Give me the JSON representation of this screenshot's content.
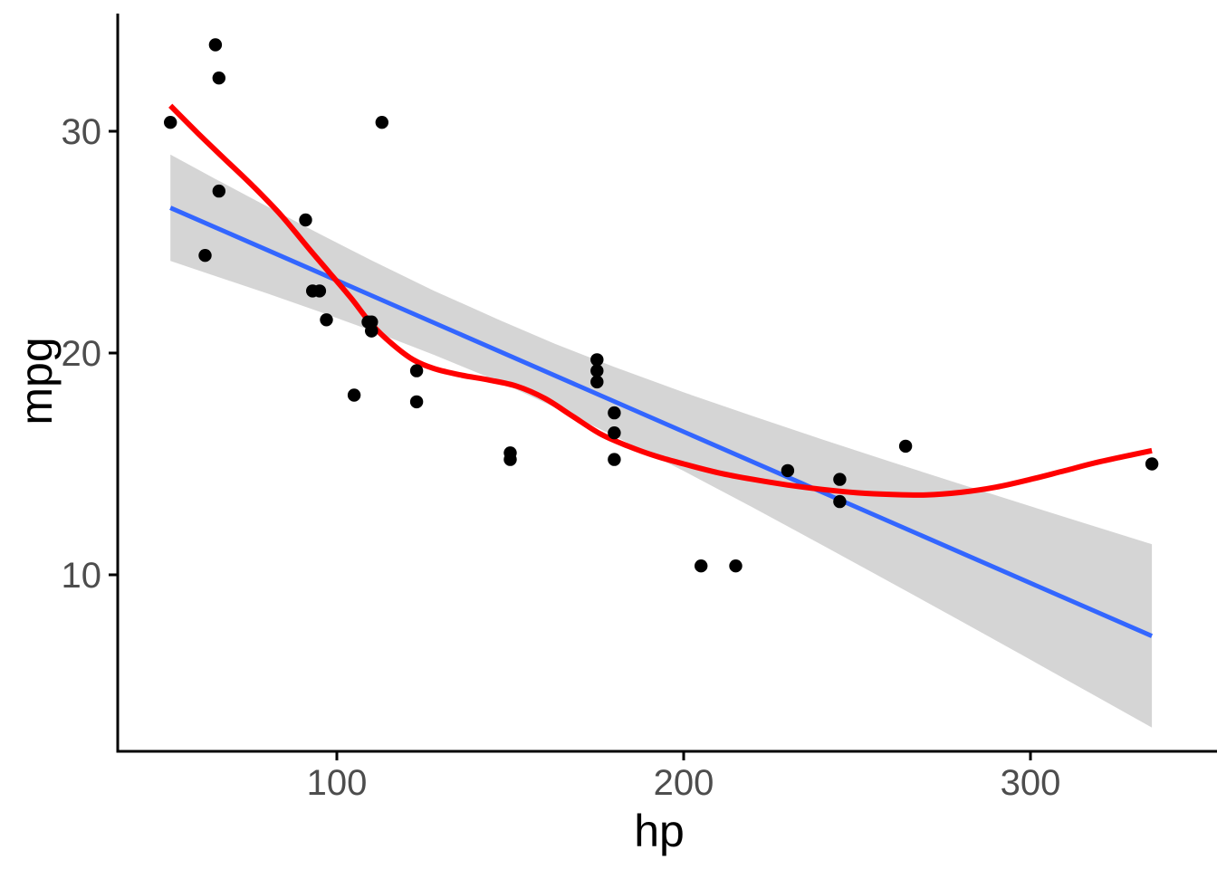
{
  "chart_data": {
    "type": "scatter",
    "title": "",
    "xlabel": "hp",
    "ylabel": "mpg",
    "x_ticks": [
      100,
      200,
      300
    ],
    "y_ticks": [
      10,
      20,
      30
    ],
    "xlim": [
      37,
      354
    ],
    "ylim": [
      2,
      35.3
    ],
    "grid": false,
    "legend": "none",
    "colors": {
      "point": "#000000",
      "linear_line": "#3366FF",
      "loess_line": "#FF0000",
      "ribbon": "#D5D5D5",
      "axis_line": "#000000",
      "tick_mark": "#000000",
      "tick_label": "#4D4D4D",
      "axis_title": "#000000",
      "background": "#FFFFFF"
    },
    "points": [
      [
        110,
        21.0
      ],
      [
        110,
        21.0
      ],
      [
        93,
        22.8
      ],
      [
        110,
        21.4
      ],
      [
        175,
        18.7
      ],
      [
        105,
        18.1
      ],
      [
        245,
        14.3
      ],
      [
        62,
        24.4
      ],
      [
        95,
        22.8
      ],
      [
        123,
        19.2
      ],
      [
        123,
        17.8
      ],
      [
        180,
        16.4
      ],
      [
        180,
        17.3
      ],
      [
        180,
        15.2
      ],
      [
        205,
        10.4
      ],
      [
        215,
        10.4
      ],
      [
        230,
        14.7
      ],
      [
        66,
        32.4
      ],
      [
        52,
        30.4
      ],
      [
        65,
        33.9
      ],
      [
        97,
        21.5
      ],
      [
        150,
        15.5
      ],
      [
        150,
        15.2
      ],
      [
        245,
        13.3
      ],
      [
        175,
        19.2
      ],
      [
        66,
        27.3
      ],
      [
        91,
        26.0
      ],
      [
        113,
        30.4
      ],
      [
        264,
        15.8
      ],
      [
        175,
        19.7
      ],
      [
        335,
        15.0
      ],
      [
        109,
        21.4
      ]
    ],
    "linear_fit": {
      "name": "lm",
      "x": [
        52,
        335
      ],
      "y": [
        26.55,
        7.24
      ]
    },
    "ribbon_ci": {
      "level": 0.95,
      "x": [
        52,
        65,
        80,
        95,
        110,
        128,
        147,
        163,
        180,
        200,
        220,
        240,
        260,
        280,
        300,
        318,
        335
      ],
      "upper": [
        28.95,
        27.85,
        26.6,
        25.37,
        24.18,
        22.81,
        21.48,
        20.41,
        19.37,
        18.23,
        17.15,
        16.1,
        15.08,
        14.08,
        13.09,
        12.21,
        11.38
      ],
      "lower": [
        24.15,
        23.47,
        22.68,
        21.86,
        21.01,
        19.92,
        18.7,
        17.54,
        16.26,
        14.68,
        13.03,
        11.34,
        9.63,
        7.91,
        6.17,
        4.6,
        3.11
      ]
    },
    "loess_fit": {
      "name": "loess",
      "x": [
        52,
        60,
        68,
        76,
        84,
        92,
        98,
        104,
        110,
        116,
        122,
        128,
        136,
        144,
        152,
        160,
        168,
        176,
        184,
        192,
        200,
        210,
        220,
        230,
        240,
        250,
        260,
        270,
        280,
        290,
        300,
        310,
        320,
        335
      ],
      "y": [
        31.15,
        29.9,
        28.7,
        27.5,
        26.2,
        24.7,
        23.6,
        22.5,
        21.3,
        20.4,
        19.7,
        19.3,
        19.0,
        18.78,
        18.5,
        17.95,
        17.15,
        16.35,
        15.8,
        15.35,
        15.0,
        14.6,
        14.3,
        14.05,
        13.85,
        13.7,
        13.62,
        13.6,
        13.72,
        13.95,
        14.3,
        14.7,
        15.1,
        15.6
      ]
    }
  }
}
